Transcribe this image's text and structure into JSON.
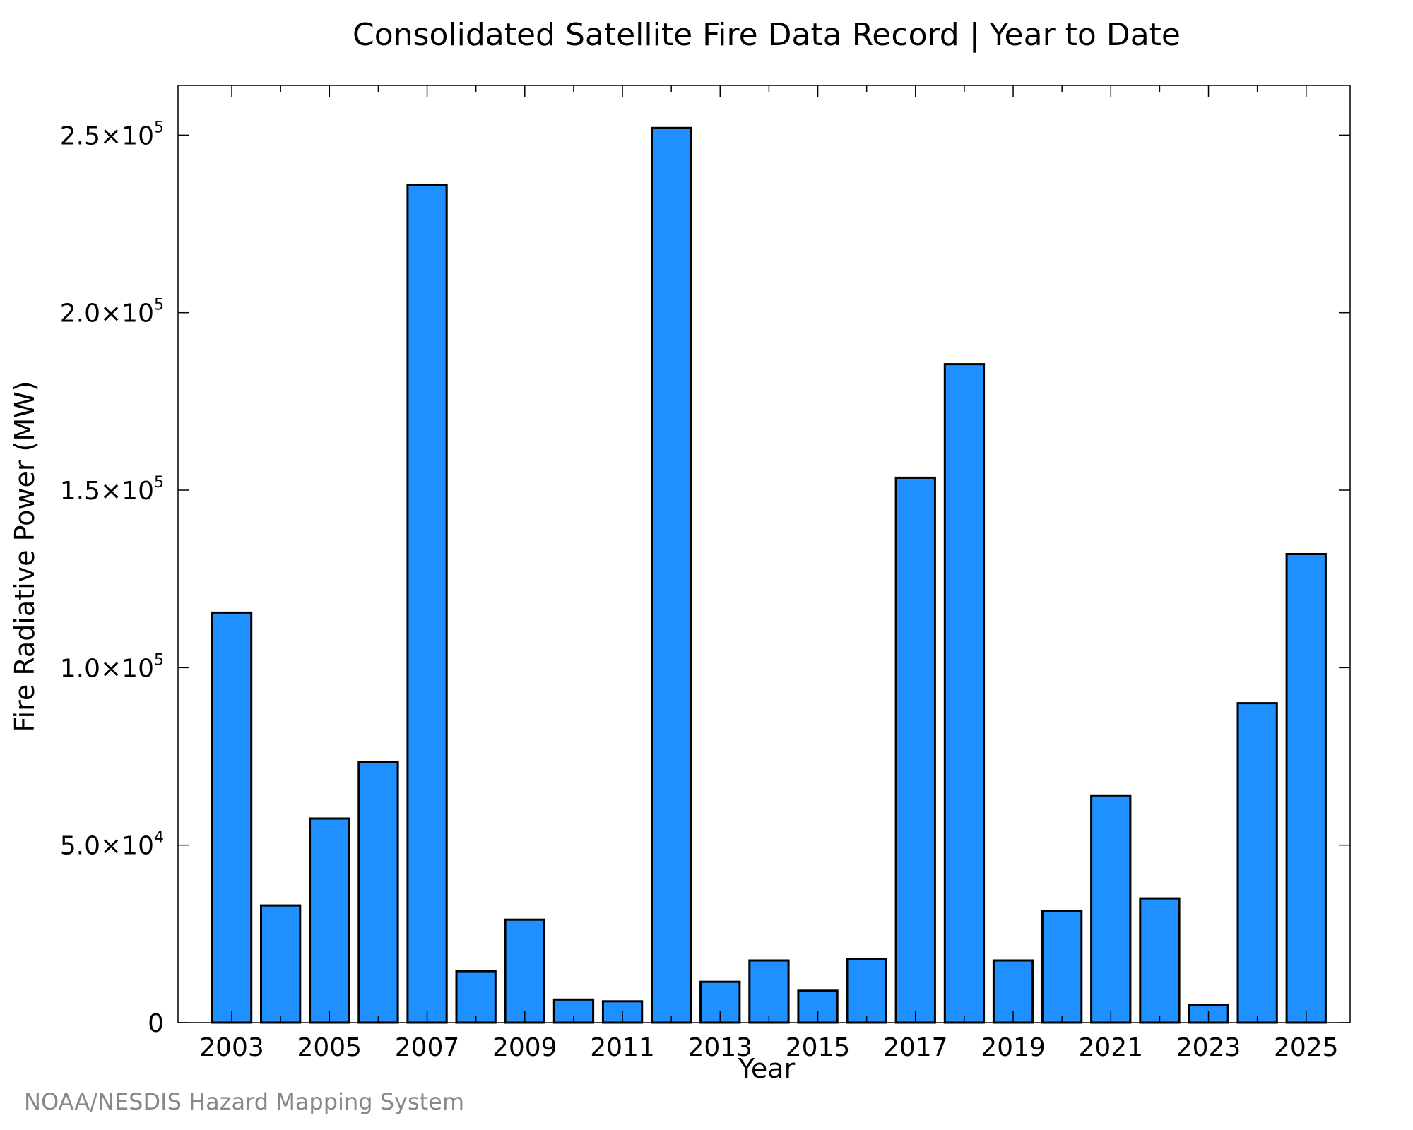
{
  "colors": {
    "bar_fill": "#1e90ff",
    "bar_stroke": "#000000",
    "frame": "#000000",
    "credit_text": "#888888"
  },
  "credit": "NOAA/NESDIS Hazard Mapping System",
  "chart_data": {
    "type": "bar",
    "title": "Consolidated Satellite Fire Data Record | Year to Date",
    "xlabel": "Year",
    "ylabel": "Fire Radiative Power (MW)",
    "categories": [
      2003,
      2004,
      2005,
      2006,
      2007,
      2008,
      2009,
      2010,
      2011,
      2012,
      2013,
      2014,
      2015,
      2016,
      2017,
      2018,
      2019,
      2020,
      2021,
      2022,
      2023,
      2024,
      2025
    ],
    "values": [
      115500,
      33000,
      57500,
      73500,
      236000,
      14500,
      29000,
      6500,
      6000,
      252000,
      11500,
      17500,
      9000,
      18000,
      153500,
      185500,
      17500,
      31500,
      64000,
      35000,
      5000,
      90000,
      132000
    ],
    "ylim": [
      0,
      264000
    ],
    "xlim": [
      2001.9,
      2025.9
    ],
    "x_ticks": [
      {
        "value": 2003,
        "label": "2003"
      },
      {
        "value": 2005,
        "label": "2005"
      },
      {
        "value": 2007,
        "label": "2007"
      },
      {
        "value": 2009,
        "label": "2009"
      },
      {
        "value": 2011,
        "label": "2011"
      },
      {
        "value": 2013,
        "label": "2013"
      },
      {
        "value": 2015,
        "label": "2015"
      },
      {
        "value": 2017,
        "label": "2017"
      },
      {
        "value": 2019,
        "label": "2019"
      },
      {
        "value": 2021,
        "label": "2021"
      },
      {
        "value": 2023,
        "label": "2023"
      },
      {
        "value": 2025,
        "label": "2025"
      }
    ],
    "x_minor_ticks": [
      2004,
      2006,
      2008,
      2010,
      2012,
      2014,
      2016,
      2018,
      2020,
      2022,
      2024
    ],
    "y_ticks": [
      {
        "value": 0,
        "mantissa": "0",
        "exponent": ""
      },
      {
        "value": 50000,
        "mantissa": "5.0×10",
        "exponent": "4"
      },
      {
        "value": 100000,
        "mantissa": "1.0×10",
        "exponent": "5"
      },
      {
        "value": 150000,
        "mantissa": "1.5×10",
        "exponent": "5"
      },
      {
        "value": 200000,
        "mantissa": "2.0×10",
        "exponent": "5"
      },
      {
        "value": 250000,
        "mantissa": "2.5×10",
        "exponent": "5"
      }
    ],
    "bar_width": 0.8,
    "grid": false,
    "legend": "none"
  }
}
